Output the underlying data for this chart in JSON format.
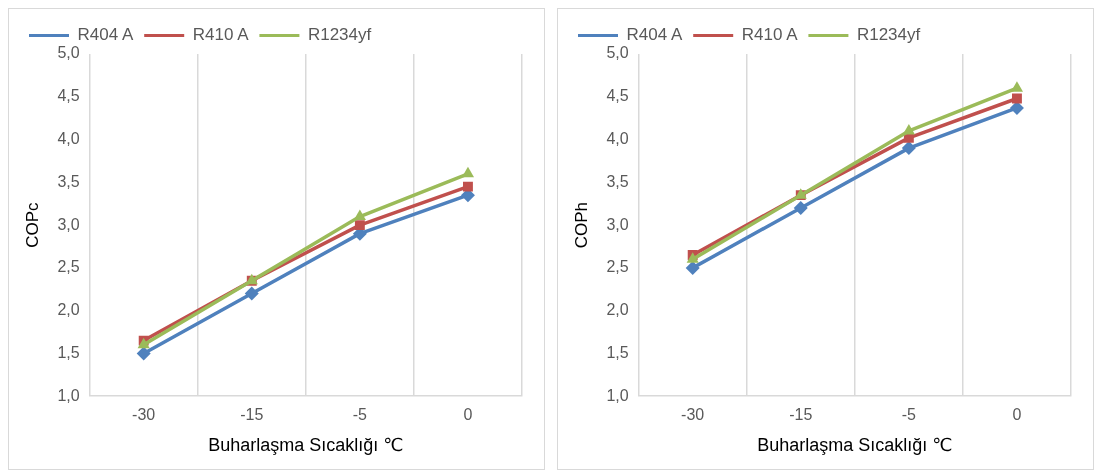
{
  "chart_data": [
    {
      "type": "line",
      "categories": [
        "-30",
        "-15",
        "-5",
        "0"
      ],
      "xlabel": "Buharlaşma Sıcaklığı ℃",
      "ylabel": "COPc",
      "ylim": [
        1,
        5
      ],
      "yticks": [
        {
          "value": 1,
          "label": "1,0"
        },
        {
          "value": 1.5,
          "label": "1,5"
        },
        {
          "value": 2,
          "label": "2,0"
        },
        {
          "value": 2.5,
          "label": "2,5"
        },
        {
          "value": 3,
          "label": "3,0"
        },
        {
          "value": 3.5,
          "label": "3,5"
        },
        {
          "value": 4,
          "label": "4,0"
        },
        {
          "value": 4.5,
          "label": "4,5"
        },
        {
          "value": 5,
          "label": "5,0"
        }
      ],
      "grid": "x",
      "legend": "top",
      "series": [
        {
          "name": "R404 A",
          "color": "#4f81bd",
          "marker": "diamond",
          "values": [
            1.5,
            2.2,
            2.9,
            3.35
          ]
        },
        {
          "name": "R410 A",
          "color": "#c0504d",
          "marker": "square",
          "values": [
            1.65,
            2.35,
            3.0,
            3.45
          ]
        },
        {
          "name": "R1234yf",
          "color": "#9bbb59",
          "marker": "triangle",
          "values": [
            1.6,
            2.35,
            3.1,
            3.6
          ]
        }
      ]
    },
    {
      "type": "line",
      "categories": [
        "-30",
        "-15",
        "-5",
        "0"
      ],
      "xlabel": "Buharlaşma Sıcaklığı ℃",
      "ylabel": "COPh",
      "ylim": [
        1,
        5
      ],
      "yticks": [
        {
          "value": 1,
          "label": "1,0"
        },
        {
          "value": 1.5,
          "label": "1,5"
        },
        {
          "value": 2,
          "label": "2,0"
        },
        {
          "value": 2.5,
          "label": "2,5"
        },
        {
          "value": 3,
          "label": "3,0"
        },
        {
          "value": 3.5,
          "label": "3,5"
        },
        {
          "value": 4,
          "label": "4,0"
        },
        {
          "value": 4.5,
          "label": "4,5"
        },
        {
          "value": 5,
          "label": "5,0"
        }
      ],
      "grid": "x",
      "legend": "top",
      "series": [
        {
          "name": "R404 A",
          "color": "#4f81bd",
          "marker": "diamond",
          "values": [
            2.5,
            3.2,
            3.9,
            4.37
          ]
        },
        {
          "name": "R410 A",
          "color": "#c0504d",
          "marker": "square",
          "values": [
            2.65,
            3.35,
            4.02,
            4.48
          ]
        },
        {
          "name": "R1234yf",
          "color": "#9bbb59",
          "marker": "triangle",
          "values": [
            2.6,
            3.35,
            4.1,
            4.6
          ]
        }
      ]
    }
  ]
}
